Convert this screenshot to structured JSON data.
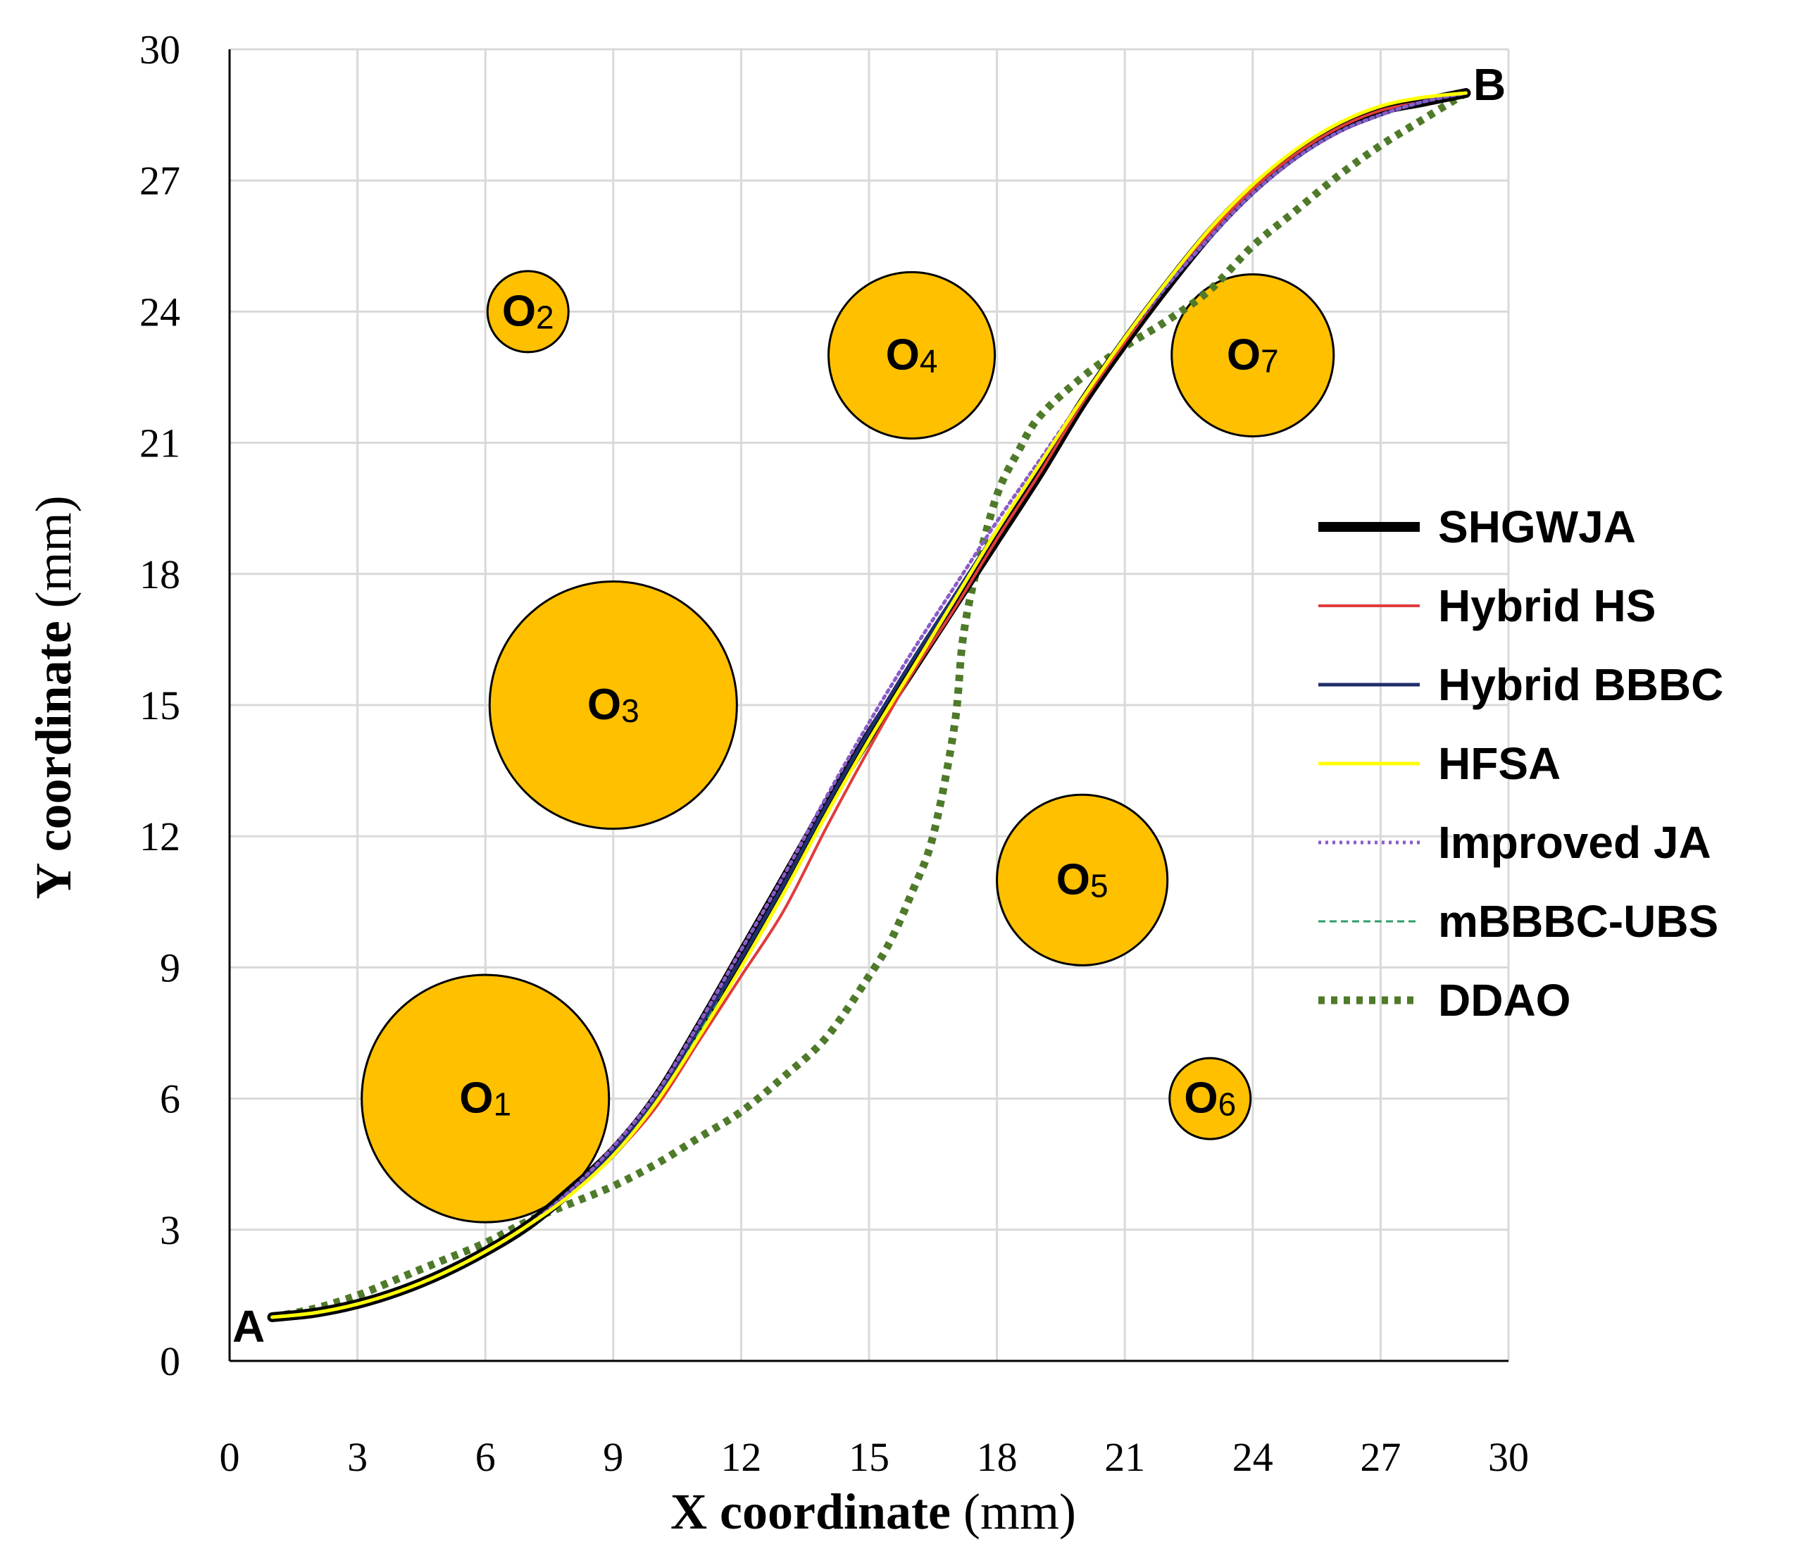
{
  "chart_data": {
    "type": "line",
    "xlabel": "X coordinate",
    "ylabel": "Y coordinate",
    "unit": "(mm)",
    "xlim": [
      0,
      30
    ],
    "ylim": [
      0,
      30
    ],
    "xticks": [
      0,
      3,
      6,
      9,
      12,
      15,
      18,
      21,
      24,
      27,
      30
    ],
    "yticks": [
      0,
      3,
      6,
      9,
      12,
      15,
      18,
      21,
      24,
      27,
      30
    ],
    "grid": true,
    "legend_position": "right",
    "start_point": {
      "label": "A",
      "x": 1,
      "y": 1
    },
    "end_point": {
      "label": "B",
      "x": 29,
      "y": 29
    },
    "obstacle_color": "#ffc000",
    "obstacles": [
      {
        "prefix": "O",
        "sub": "1",
        "x": 6,
        "y": 6,
        "r": 2.9
      },
      {
        "prefix": "O",
        "sub": "2",
        "x": 7,
        "y": 24,
        "r": 0.95
      },
      {
        "prefix": "O",
        "sub": "3",
        "x": 9,
        "y": 15,
        "r": 2.9
      },
      {
        "prefix": "O",
        "sub": "4",
        "x": 16,
        "y": 23,
        "r": 1.95
      },
      {
        "prefix": "O",
        "sub": "5",
        "x": 20,
        "y": 11,
        "r": 2.0
      },
      {
        "prefix": "O",
        "sub": "6",
        "x": 23,
        "y": 6,
        "r": 0.95
      },
      {
        "prefix": "O",
        "sub": "7",
        "x": 24,
        "y": 23,
        "r": 1.9
      }
    ],
    "series": [
      {
        "name": "SHGWJA",
        "color": "#000000",
        "style": "solid-thick",
        "x": [
          1,
          2,
          3,
          4,
          5,
          6,
          7,
          8,
          9,
          10,
          11,
          12,
          13,
          14,
          15,
          16,
          17,
          18,
          19,
          20,
          21,
          22,
          23,
          24,
          25,
          26,
          27,
          28,
          29
        ],
        "y": [
          1.0,
          1.1,
          1.3,
          1.6,
          2.0,
          2.5,
          3.1,
          3.9,
          4.8,
          6.0,
          7.6,
          9.3,
          11.0,
          12.7,
          14.3,
          15.8,
          17.3,
          18.8,
          20.3,
          21.9,
          23.3,
          24.6,
          25.8,
          26.8,
          27.6,
          28.2,
          28.6,
          28.8,
          29.0
        ]
      },
      {
        "name": "Hybrid HS",
        "color": "#e03c3c",
        "style": "solid-thin",
        "x": [
          1,
          2,
          3,
          4,
          5,
          6,
          7,
          8,
          9,
          10,
          11,
          12,
          13,
          14,
          15,
          16,
          17,
          18,
          19,
          20,
          21,
          22,
          23,
          24,
          25,
          26,
          27,
          28,
          29
        ],
        "y": [
          1.0,
          1.1,
          1.3,
          1.6,
          2.0,
          2.5,
          3.1,
          3.8,
          4.7,
          5.8,
          7.3,
          8.8,
          10.3,
          12.2,
          14.0,
          15.7,
          17.2,
          18.8,
          20.3,
          21.9,
          23.3,
          24.6,
          25.8,
          26.8,
          27.6,
          28.2,
          28.6,
          28.8,
          29.0
        ]
      },
      {
        "name": "Hybrid BBBC",
        "color": "#1f2f6b",
        "style": "solid",
        "x": [
          1,
          2,
          3,
          4,
          5,
          6,
          7,
          8,
          9,
          10,
          11,
          12,
          13,
          14,
          15,
          16,
          17,
          18,
          19,
          20,
          21,
          22,
          23,
          24,
          25,
          26,
          27,
          28,
          29
        ],
        "y": [
          1.0,
          1.1,
          1.3,
          1.6,
          2.0,
          2.5,
          3.1,
          3.9,
          4.8,
          6.0,
          7.6,
          9.2,
          10.9,
          12.7,
          14.4,
          16.0,
          17.5,
          19.0,
          20.5,
          22.0,
          23.4,
          24.6,
          25.7,
          26.7,
          27.5,
          28.1,
          28.5,
          28.8,
          29.0
        ]
      },
      {
        "name": "HFSA",
        "color": "#ffff00",
        "style": "solid",
        "x": [
          1,
          2,
          3,
          4,
          5,
          6,
          7,
          8,
          9,
          10,
          11,
          12,
          13,
          14,
          15,
          16,
          17,
          18,
          19,
          20,
          21,
          22,
          23,
          24,
          25,
          26,
          27,
          28,
          29
        ],
        "y": [
          1.0,
          1.1,
          1.3,
          1.6,
          2.0,
          2.5,
          3.1,
          3.8,
          4.7,
          5.9,
          7.4,
          9.0,
          10.7,
          12.5,
          14.2,
          15.8,
          17.4,
          19.0,
          20.5,
          22.0,
          23.4,
          24.7,
          25.9,
          26.9,
          27.7,
          28.3,
          28.7,
          28.9,
          29.0
        ]
      },
      {
        "name": "Improved JA",
        "color": "#8a5cc8",
        "style": "dotted",
        "x": [
          1,
          2,
          3,
          4,
          5,
          6,
          7,
          8,
          9,
          10,
          11,
          12,
          13,
          14,
          15,
          16,
          17,
          18,
          19,
          20,
          21,
          22,
          23,
          24,
          25,
          26,
          27,
          28,
          29
        ],
        "y": [
          1.0,
          1.1,
          1.3,
          1.6,
          2.0,
          2.5,
          3.1,
          3.9,
          4.9,
          6.1,
          7.7,
          9.4,
          11.1,
          12.9,
          14.6,
          16.2,
          17.7,
          19.2,
          20.6,
          22.0,
          23.4,
          24.6,
          25.7,
          26.7,
          27.5,
          28.1,
          28.5,
          28.8,
          29.0
        ]
      },
      {
        "name": "mBBBC-UBS",
        "color": "#2f9e6a",
        "style": "dashed",
        "x": [
          1,
          2,
          3,
          4,
          5,
          6,
          7,
          8,
          9,
          10,
          11,
          12,
          13,
          14,
          15,
          16,
          17,
          18,
          19,
          20,
          21,
          22,
          23,
          24,
          25,
          26,
          27,
          28,
          29
        ],
        "y": [
          1.0,
          1.1,
          1.3,
          1.6,
          2.0,
          2.5,
          3.1,
          3.9,
          4.8,
          6.0,
          7.5,
          9.2,
          10.9,
          12.7,
          14.4,
          16.0,
          17.5,
          19.0,
          20.5,
          22.0,
          23.4,
          24.6,
          25.7,
          26.7,
          27.5,
          28.1,
          28.5,
          28.8,
          29.0
        ]
      },
      {
        "name": "DDAO",
        "color": "#4f7a2a",
        "style": "heavy-dotted",
        "x": [
          1,
          2,
          3,
          4,
          5,
          6,
          7,
          8,
          9,
          10,
          11,
          12,
          13,
          14,
          15,
          15.5,
          16,
          16.5,
          17,
          17.2,
          17.5,
          18,
          18.5,
          19,
          20,
          21,
          22,
          23,
          24,
          25,
          26,
          27,
          28,
          29
        ],
        "y": [
          1.0,
          1.2,
          1.5,
          1.9,
          2.3,
          2.7,
          3.2,
          3.6,
          4.0,
          4.5,
          5.1,
          5.7,
          6.5,
          7.4,
          8.8,
          9.6,
          10.7,
          12.0,
          14.5,
          16.5,
          18.0,
          19.8,
          20.8,
          21.6,
          22.5,
          23.2,
          23.8,
          24.5,
          25.5,
          26.3,
          27.1,
          27.8,
          28.4,
          29.0
        ]
      }
    ]
  }
}
